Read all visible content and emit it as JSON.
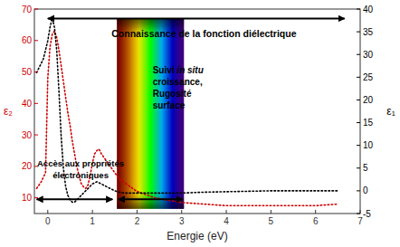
{
  "chart_data": {
    "type": "line",
    "xlabel": "Energie (eV)",
    "ylabel": "ε₂",
    "y2label": "ε₁",
    "xlim": [
      -0.3,
      7
    ],
    "xticks": [
      0,
      1,
      2,
      3,
      4,
      5,
      6,
      7
    ],
    "ylim": [
      5,
      70
    ],
    "yticks": [
      10,
      20,
      30,
      40,
      50,
      60,
      70
    ],
    "y2lim": [
      -5,
      40
    ],
    "y2ticks": [
      -5,
      0,
      5,
      10,
      15,
      20,
      25,
      30,
      35,
      40
    ],
    "grid": false,
    "series": [
      {
        "color": "#cc0000",
        "line_style": "dotted",
        "x": [
          -0.25,
          -0.15,
          -0.05,
          0.0,
          0.05,
          0.1,
          0.15,
          0.2,
          0.25,
          0.3,
          0.35,
          0.4,
          0.45,
          0.5,
          0.55,
          0.6,
          0.65,
          0.7,
          0.75,
          0.8,
          0.85,
          0.9,
          0.95,
          1.0,
          1.05,
          1.1,
          1.15,
          1.2,
          1.3,
          1.4,
          1.5,
          1.6,
          1.7,
          1.8,
          1.9,
          2.0,
          2.2,
          2.4,
          2.6,
          2.8,
          3.0,
          3.5,
          4.0,
          4.5,
          5.0,
          5.5,
          6.0,
          6.5
        ],
        "values": [
          13,
          15,
          18,
          48,
          58,
          62,
          63,
          61,
          57,
          52,
          47,
          42,
          37,
          33,
          28,
          24,
          20,
          17,
          14.5,
          13.5,
          13,
          14,
          17,
          21,
          24,
          25,
          25.5,
          24,
          22,
          20,
          18,
          16,
          15,
          14,
          13,
          12,
          11,
          10,
          9.5,
          9,
          8.5,
          8,
          7.5,
          7.5,
          7.5,
          7.5,
          7.5,
          8
        ]
      },
      {
        "color": "#000000",
        "line_style": "dotted",
        "axis": "y2",
        "x": [
          -0.25,
          -0.1,
          0.0,
          0.05,
          0.1,
          0.15,
          0.2,
          0.25,
          0.3,
          0.35,
          0.4,
          0.45,
          0.5,
          0.55,
          0.6,
          0.65,
          0.7,
          0.8,
          0.9,
          1.0,
          1.1,
          1.2,
          1.3,
          1.4,
          1.5,
          1.6,
          1.7,
          1.8,
          2.0,
          2.5,
          3.0,
          3.5,
          4.0,
          4.5,
          5.0,
          5.5,
          6.0,
          6.5
        ],
        "values": [
          26,
          29,
          33,
          36,
          38,
          36,
          31,
          22,
          12,
          5,
          1,
          -1,
          -2,
          -2.5,
          -2.5,
          -2,
          -1.5,
          -0.5,
          0.5,
          1.5,
          2,
          1.5,
          1,
          0.5,
          0,
          -0.3,
          -0.5,
          -0.5,
          -0.5,
          -0.5,
          -0.5,
          -0.3,
          -0.2,
          -0.1,
          0,
          0,
          0,
          0
        ]
      }
    ],
    "band": {
      "x": [
        1.55,
        3.05
      ],
      "y": [
        6.5,
        67
      ],
      "colors": [
        "#FF0000",
        "#FF7F00",
        "#FFFF00",
        "#00FF00",
        "#00BBFF",
        "#0000FF",
        "#8B00FF"
      ]
    },
    "arrows": [
      {
        "x": [
          0.0,
          6.65
        ],
        "y": 67
      },
      {
        "x": [
          -0.25,
          1.45
        ],
        "y": 9.5
      },
      {
        "x": [
          1.58,
          3.02
        ],
        "y": 9.5
      }
    ],
    "annotations": [
      {
        "text": "Connaissance de la fonction diélectrique",
        "x": 3.5,
        "y": 62
      },
      {
        "text": "Accès aux propriétés\nélectroniques",
        "x": 0.35,
        "y": 19
      },
      {
        "text": "Suivi in situ\ncroissance,\nRugosité\nsurface",
        "italic": "in situ",
        "x": 2.35,
        "y": 45
      }
    ]
  }
}
